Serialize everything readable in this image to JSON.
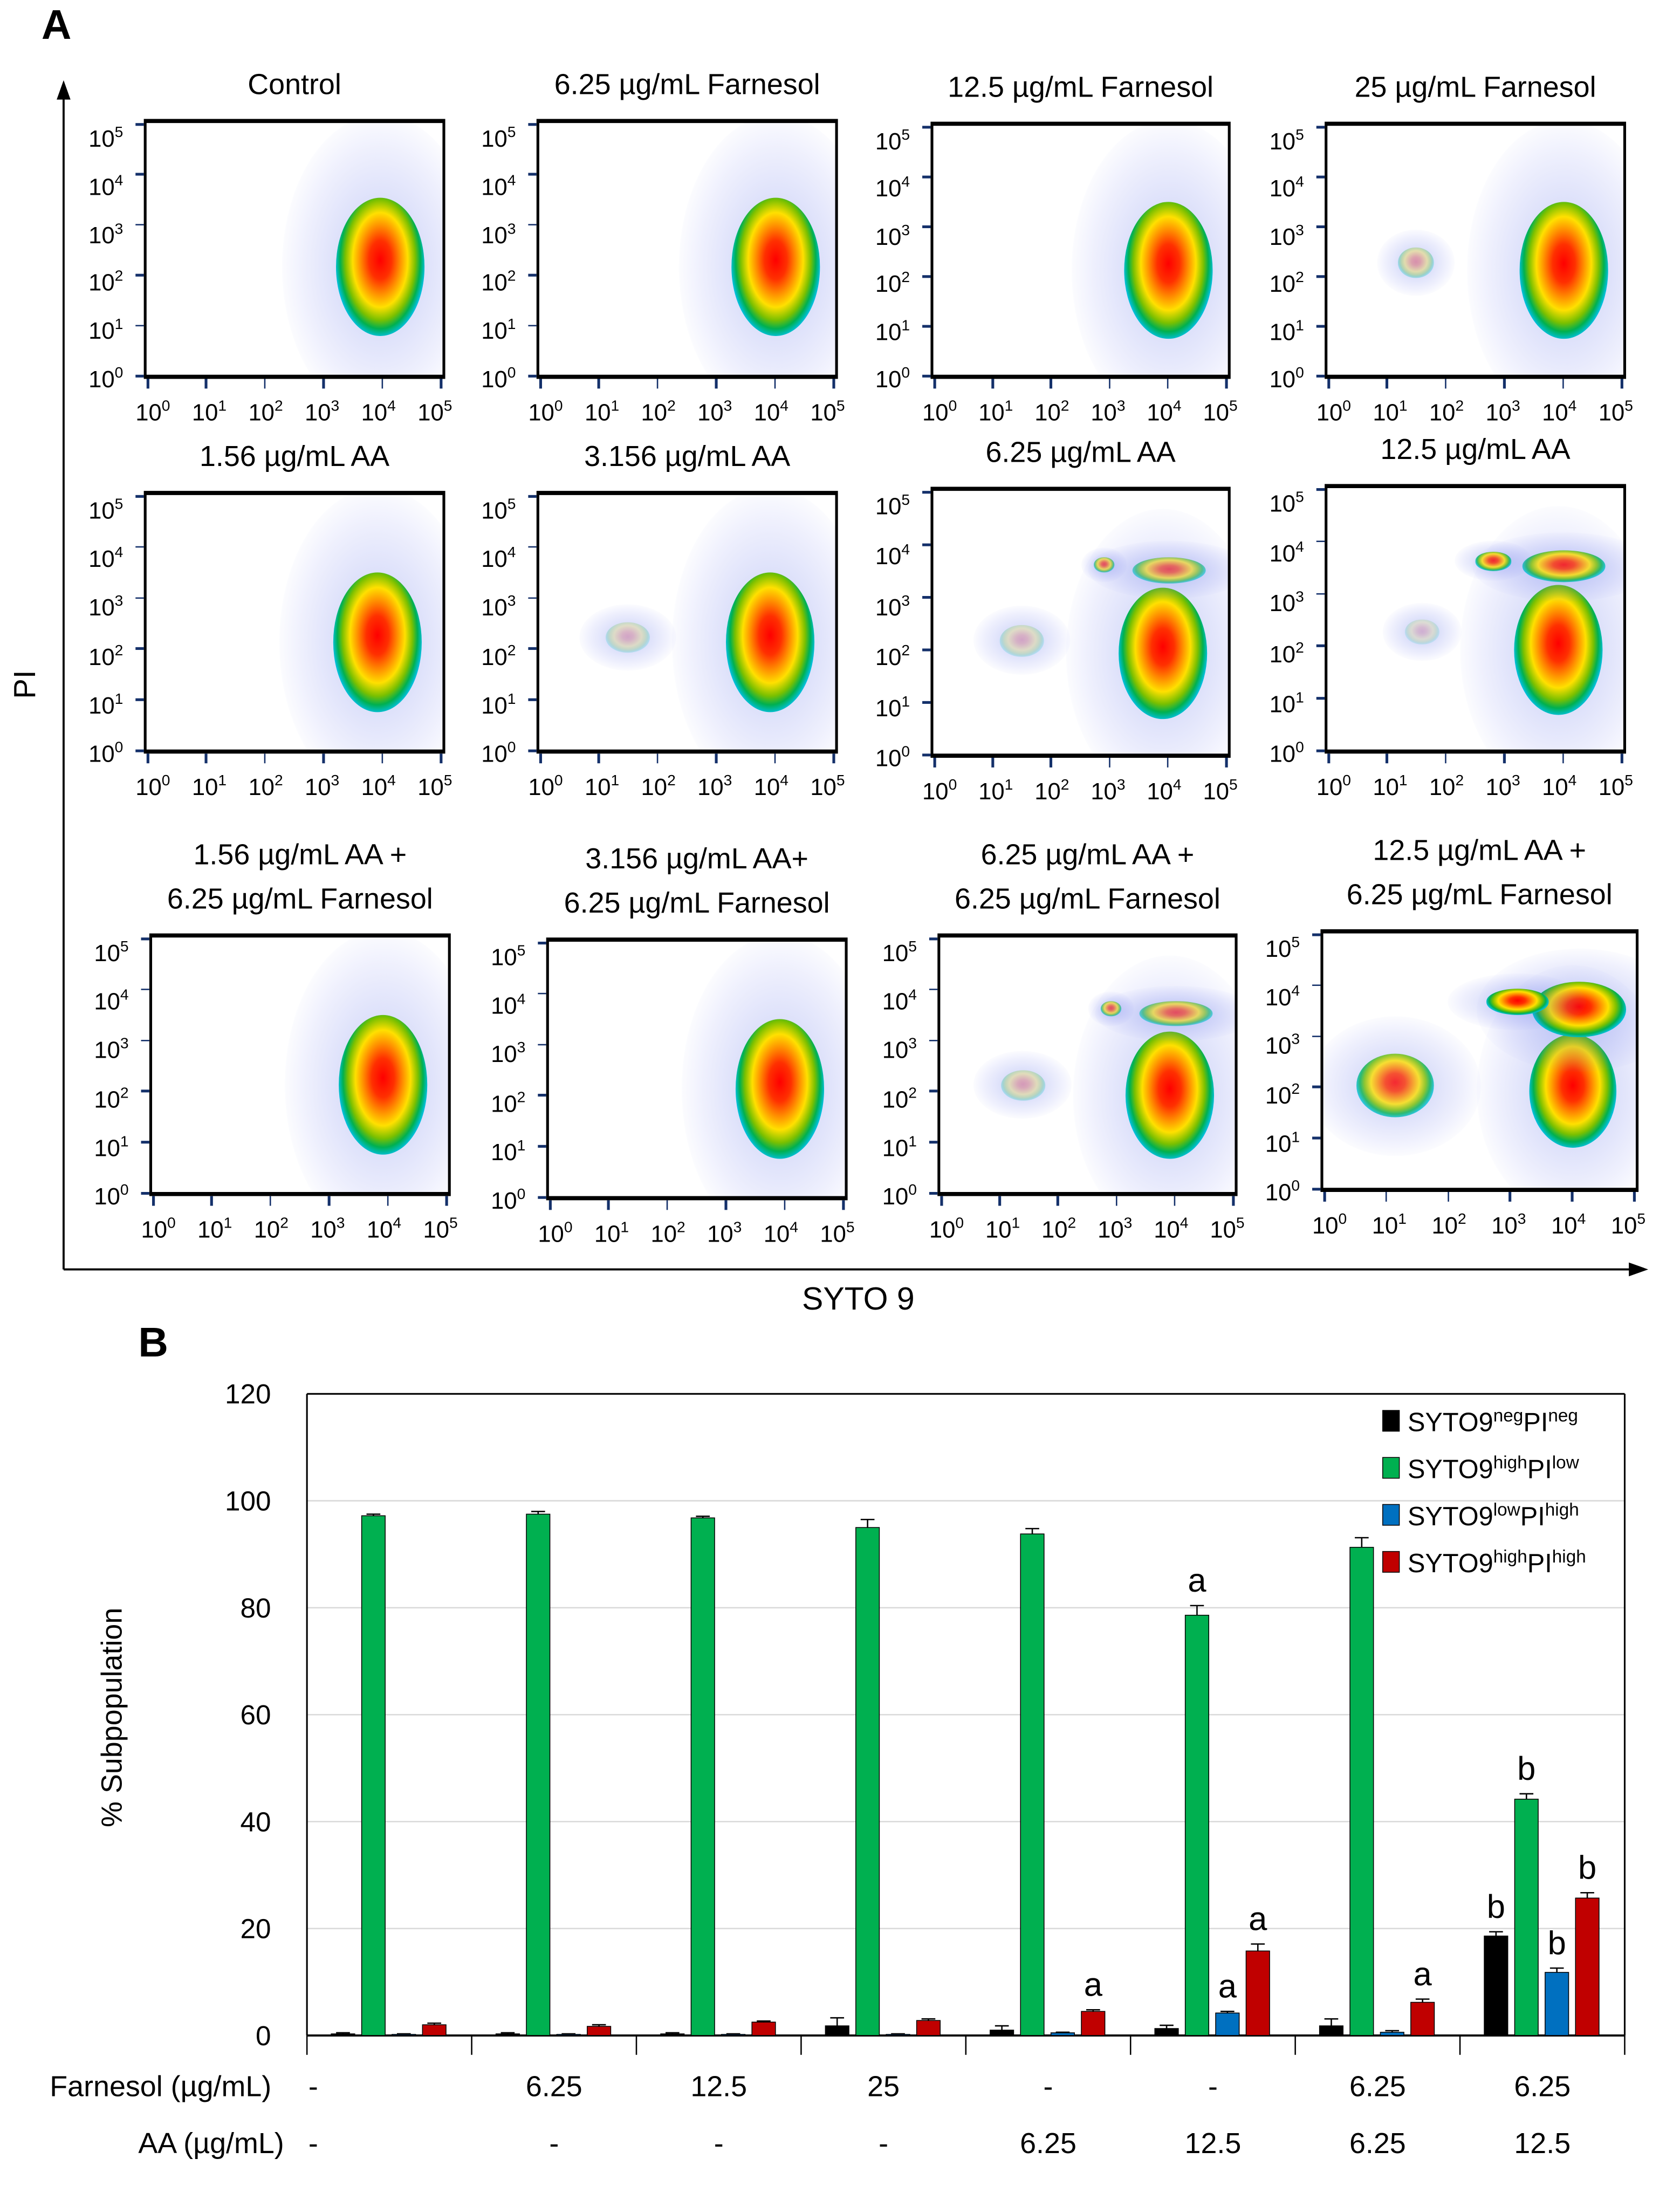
{
  "panel_a": {
    "label": "A",
    "y_axis_label": "PI",
    "x_axis_label": "SYTO 9",
    "tick_base": "10",
    "tick_exponents": [
      "0",
      "1",
      "2",
      "3",
      "4",
      "5"
    ],
    "plots": [
      {
        "title": [
          "Control"
        ]
      },
      {
        "title": [
          "6.25 µg/mL Farnesol"
        ]
      },
      {
        "title": [
          "12.5 µg/mL Farnesol"
        ]
      },
      {
        "title": [
          "25 µg/mL Farnesol"
        ]
      },
      {
        "title": [
          "1.56 µg/mL AA"
        ]
      },
      {
        "title": [
          "3.156 µg/mL AA"
        ]
      },
      {
        "title": [
          "6.25 µg/mL AA"
        ]
      },
      {
        "title": [
          "12.5 µg/mL AA"
        ]
      },
      {
        "title": [
          "1.56 µg/mL AA +",
          "6.25 µg/mL Farnesol"
        ]
      },
      {
        "title": [
          "3.156 µg/mL AA+",
          "6.25 µg/mL Farnesol"
        ]
      },
      {
        "title": [
          "6.25 µg/mL AA +",
          "6.25 µg/mL Farnesol"
        ]
      },
      {
        "title": [
          "12.5 µg/mL AA +",
          "6.25 µg/mL Farnesol"
        ]
      }
    ]
  },
  "panel_b": {
    "label": "B"
  },
  "chart_data": {
    "type": "bar",
    "title": "",
    "xlabel": "",
    "ylabel": "% Subpopulation",
    "ylim": [
      0,
      120
    ],
    "yticks": [
      "0",
      "20",
      "40",
      "60",
      "80",
      "100",
      "120"
    ],
    "grid": true,
    "legend_position": "top-right",
    "row_labels": [
      "Farnesol (µg/mL)",
      "AA (µg/mL)"
    ],
    "categories": [
      {
        "farnesol": "-",
        "aa": "-"
      },
      {
        "farnesol": "6.25",
        "aa": "-"
      },
      {
        "farnesol": "12.5",
        "aa": "-"
      },
      {
        "farnesol": "25",
        "aa": "-"
      },
      {
        "farnesol": "-",
        "aa": "6.25"
      },
      {
        "farnesol": "-",
        "aa": "12.5"
      },
      {
        "farnesol": "6.25",
        "aa": "6.25"
      },
      {
        "farnesol": "6.25",
        "aa": "12.5"
      }
    ],
    "series": [
      {
        "name": "SYTO9",
        "sup1": "neg",
        "mid": "PI",
        "sup2": "neg",
        "color": "#000000",
        "values": [
          0.3,
          0.3,
          0.3,
          1.8,
          1.0,
          1.3,
          1.8,
          18.6
        ],
        "errors": [
          0.2,
          0.2,
          0.2,
          1.5,
          0.8,
          0.6,
          1.3,
          0.8
        ],
        "annotations": [
          "",
          "",
          "",
          "",
          "",
          "",
          "",
          "b"
        ]
      },
      {
        "name": "SYTO9",
        "sup1": "high",
        "mid": "PI",
        "sup2": "low",
        "color": "#00b050",
        "values": [
          97.2,
          97.5,
          96.8,
          95.0,
          93.8,
          78.6,
          91.3,
          44.2
        ],
        "errors": [
          0.3,
          0.5,
          0.3,
          1.5,
          1.0,
          1.8,
          1.8,
          1.0
        ],
        "annotations": [
          "",
          "",
          "",
          "",
          "",
          "a",
          "",
          "b"
        ]
      },
      {
        "name": "SYTO9",
        "sup1": "low",
        "mid": "PI",
        "sup2": "high",
        "color": "#0070c0",
        "values": [
          0.2,
          0.2,
          0.2,
          0.2,
          0.5,
          4.2,
          0.6,
          11.8
        ],
        "errors": [
          0.1,
          0.1,
          0.1,
          0.1,
          0.1,
          0.3,
          0.3,
          0.8
        ],
        "annotations": [
          "",
          "",
          "",
          "",
          "",
          "a",
          "",
          "b"
        ]
      },
      {
        "name": "SYTO9",
        "sup1": "high",
        "mid": "PI",
        "sup2": "high",
        "color": "#c00000",
        "values": [
          2.0,
          1.7,
          2.5,
          2.8,
          4.5,
          15.8,
          6.2,
          25.7
        ],
        "errors": [
          0.3,
          0.3,
          0.2,
          0.3,
          0.3,
          1.3,
          0.6,
          1.0
        ],
        "annotations": [
          "",
          "",
          "",
          "",
          "a",
          "a",
          "a",
          "b"
        ]
      }
    ]
  }
}
